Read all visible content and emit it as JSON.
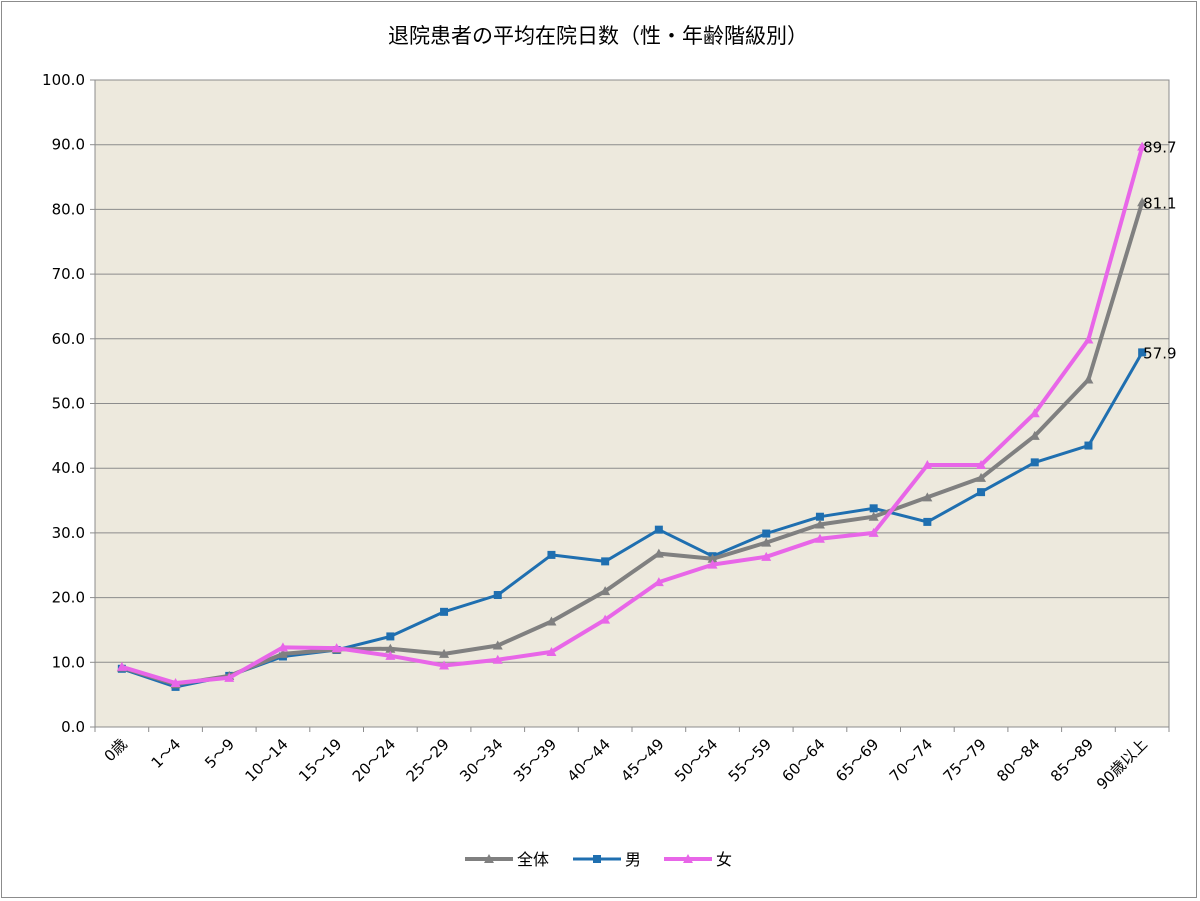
{
  "chart_data": {
    "type": "line",
    "title": "退院患者の平均在院日数（性・年齢階級別）",
    "categories": [
      "0歳",
      "1～4",
      "5～9",
      "10～14",
      "15～19",
      "20～24",
      "25～29",
      "30～34",
      "35～39",
      "40～44",
      "45～49",
      "50～54",
      "55～59",
      "60～64",
      "65～69",
      "70～74",
      "75～79",
      "80～84",
      "85～89",
      "90歳以上"
    ],
    "ylim": [
      0,
      100
    ],
    "yticks": [
      "0.0",
      "10.0",
      "20.0",
      "30.0",
      "40.0",
      "50.0",
      "60.0",
      "70.0",
      "80.0",
      "90.0",
      "100.0"
    ],
    "grid": true,
    "legend_position": "bottom",
    "series": [
      {
        "name": "全体",
        "color": "#808080",
        "marker": "triangle",
        "values": [
          9.2,
          6.6,
          7.9,
          11.3,
          12.0,
          12.1,
          11.3,
          12.6,
          16.3,
          21.0,
          26.8,
          26.0,
          28.5,
          31.3,
          32.5,
          35.5,
          38.5,
          45.0,
          53.7,
          81.1
        ]
      },
      {
        "name": "男",
        "color": "#1f6fb0",
        "marker": "square",
        "values": [
          9.0,
          6.2,
          7.9,
          10.9,
          11.9,
          14.0,
          17.8,
          20.4,
          26.6,
          25.6,
          30.5,
          26.4,
          29.9,
          32.5,
          33.8,
          31.7,
          36.3,
          40.9,
          43.5,
          57.9
        ]
      },
      {
        "name": "女",
        "color": "#e866e8",
        "marker": "triangle",
        "values": [
          9.3,
          6.8,
          7.6,
          12.3,
          12.2,
          11.0,
          9.5,
          10.4,
          11.6,
          16.6,
          22.4,
          25.1,
          26.3,
          29.1,
          30.0,
          40.5,
          40.5,
          48.5,
          59.9,
          89.7
        ]
      }
    ],
    "data_labels": [
      {
        "series": "女",
        "category": "90歳以上",
        "text": "89.7"
      },
      {
        "series": "全体",
        "category": "90歳以上",
        "text": "81.1"
      },
      {
        "series": "男",
        "category": "90歳以上",
        "text": "57.9"
      }
    ]
  }
}
